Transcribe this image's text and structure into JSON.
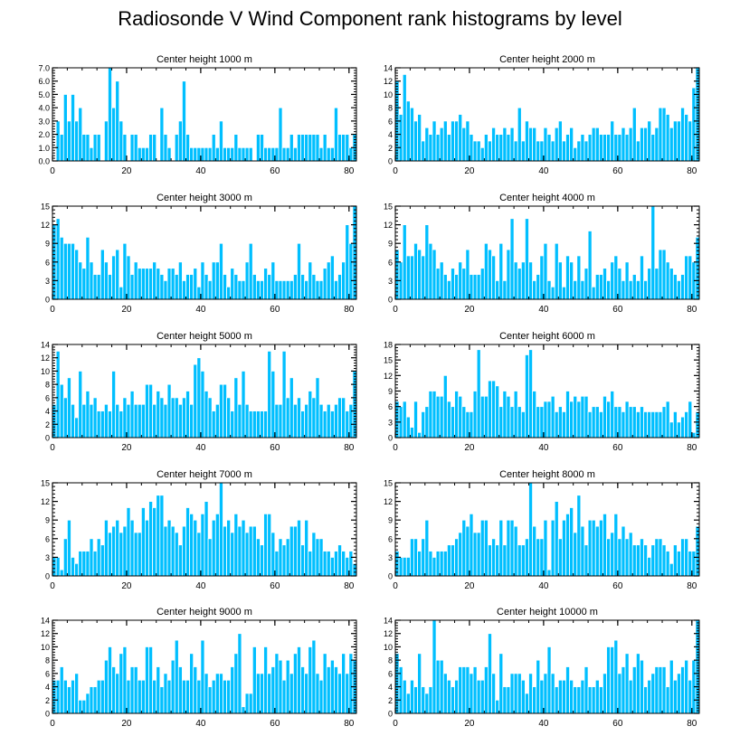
{
  "title": "Radiosonde V Wind Component rank histograms by level",
  "colors": {
    "bar": "#00BFFF",
    "bar_edge": "#ffffff",
    "axis": "#000000"
  },
  "chart_data": [
    {
      "type": "bar",
      "title": "Center height 1000 m",
      "xlim": [
        0,
        82
      ],
      "ylim": [
        0,
        7
      ],
      "xticks": [
        0,
        20,
        40,
        60,
        80
      ],
      "yticks": [
        "0.0",
        "1.0",
        "2.0",
        "3.0",
        "4.0",
        "5.0",
        "6.0",
        "7.0"
      ],
      "values": [
        0,
        3,
        2,
        5,
        3,
        5,
        3,
        4,
        2,
        2,
        1,
        2,
        2,
        0,
        3,
        7,
        4,
        6,
        3,
        2,
        0,
        2,
        2,
        1,
        1,
        1,
        2,
        2,
        0,
        4,
        2,
        1,
        0,
        2,
        3,
        6,
        2,
        1,
        1,
        1,
        1,
        1,
        1,
        2,
        1,
        3,
        1,
        1,
        1,
        2,
        1,
        1,
        1,
        1,
        0,
        2,
        2,
        1,
        1,
        1,
        1,
        4,
        1,
        1,
        2,
        1,
        2,
        2,
        2,
        2,
        2,
        2,
        1,
        2,
        1,
        1,
        4,
        2,
        2,
        2,
        1,
        2
      ]
    },
    {
      "type": "bar",
      "title": "Center height 2000 m",
      "xlim": [
        0,
        82
      ],
      "ylim": [
        0,
        14
      ],
      "xticks": [
        0,
        20,
        40,
        60,
        80
      ],
      "yticks": [
        "0",
        "2",
        "4",
        "6",
        "8",
        "10",
        "12",
        "14"
      ],
      "values": [
        12,
        7,
        13,
        9,
        8,
        6,
        7,
        3,
        5,
        4,
        6,
        4,
        5,
        6,
        4,
        6,
        6,
        7,
        5,
        6,
        4,
        3,
        3,
        2,
        4,
        3,
        5,
        4,
        4,
        5,
        4,
        5,
        3,
        8,
        3,
        6,
        5,
        5,
        3,
        3,
        5,
        4,
        3,
        5,
        6,
        3,
        4,
        5,
        2,
        3,
        4,
        3,
        4,
        5,
        5,
        4,
        4,
        4,
        6,
        4,
        4,
        5,
        4,
        5,
        8,
        3,
        5,
        5,
        6,
        4,
        5,
        8,
        8,
        7,
        5,
        6,
        6,
        8,
        7,
        6,
        11,
        14
      ]
    },
    {
      "type": "bar",
      "title": "Center height 3000 m",
      "xlim": [
        0,
        82
      ],
      "ylim": [
        0,
        15
      ],
      "xticks": [
        0,
        20,
        40,
        60,
        80
      ],
      "yticks": [
        "0",
        "3",
        "6",
        "9",
        "12",
        "15"
      ],
      "values": [
        12,
        13,
        10,
        9,
        9,
        9,
        8,
        6,
        5,
        10,
        6,
        4,
        4,
        8,
        6,
        4,
        7,
        8,
        2,
        9,
        7,
        4,
        6,
        5,
        5,
        5,
        5,
        6,
        5,
        4,
        3,
        5,
        5,
        4,
        6,
        3,
        4,
        4,
        5,
        2,
        6,
        4,
        3,
        6,
        6,
        9,
        4,
        2,
        5,
        4,
        3,
        3,
        6,
        9,
        4,
        3,
        3,
        5,
        4,
        6,
        3,
        3,
        3,
        3,
        3,
        4,
        9,
        4,
        3,
        6,
        4,
        3,
        3,
        5,
        6,
        7,
        3,
        4,
        6,
        12,
        9,
        15
      ]
    },
    {
      "type": "bar",
      "title": "Center height 4000 m",
      "xlim": [
        0,
        82
      ],
      "ylim": [
        0,
        15
      ],
      "xticks": [
        0,
        20,
        40,
        60,
        80
      ],
      "yticks": [
        "0",
        "3",
        "6",
        "9",
        "12",
        "15"
      ],
      "values": [
        8,
        6,
        12,
        7,
        7,
        9,
        8,
        7,
        12,
        9,
        8,
        5,
        6,
        4,
        3,
        5,
        4,
        6,
        5,
        8,
        4,
        4,
        4,
        5,
        9,
        8,
        7,
        3,
        9,
        3,
        8,
        13,
        6,
        5,
        6,
        13,
        6,
        3,
        4,
        7,
        9,
        3,
        2,
        9,
        6,
        2,
        7,
        6,
        3,
        7,
        3,
        5,
        11,
        2,
        4,
        4,
        5,
        3,
        6,
        7,
        5,
        3,
        6,
        3,
        4,
        3,
        7,
        3,
        5,
        15,
        5,
        8,
        8,
        6,
        5,
        4,
        3,
        4,
        7,
        7,
        6,
        10
      ]
    },
    {
      "type": "bar",
      "title": "Center height 5000 m",
      "xlim": [
        0,
        82
      ],
      "ylim": [
        0,
        14
      ],
      "xticks": [
        0,
        20,
        40,
        60,
        80
      ],
      "yticks": [
        "0",
        "2",
        "4",
        "6",
        "8",
        "10",
        "12",
        "14"
      ],
      "values": [
        5,
        13,
        8,
        6,
        9,
        5,
        3,
        10,
        5,
        7,
        5,
        6,
        4,
        4,
        5,
        4,
        10,
        5,
        4,
        6,
        5,
        7,
        5,
        5,
        5,
        8,
        8,
        5,
        7,
        6,
        5,
        8,
        6,
        6,
        5,
        6,
        7,
        5,
        11,
        12,
        10,
        7,
        6,
        4,
        5,
        8,
        8,
        6,
        4,
        9,
        5,
        10,
        5,
        4,
        4,
        4,
        4,
        4,
        13,
        10,
        5,
        5,
        13,
        6,
        9,
        5,
        6,
        4,
        5,
        7,
        6,
        9,
        5,
        4,
        5,
        4,
        5,
        6,
        6,
        4,
        5,
        10
      ]
    },
    {
      "type": "bar",
      "title": "Center height 6000 m",
      "xlim": [
        0,
        82
      ],
      "ylim": [
        0,
        18
      ],
      "xticks": [
        0,
        20,
        40,
        60,
        80
      ],
      "yticks": [
        "0",
        "3",
        "6",
        "9",
        "12",
        "15",
        "18"
      ],
      "values": [
        7,
        6,
        7,
        4,
        2,
        7,
        1,
        5,
        6,
        9,
        9,
        8,
        8,
        12,
        7,
        6,
        9,
        8,
        6,
        5,
        5,
        9,
        17,
        8,
        8,
        11,
        11,
        10,
        6,
        9,
        8,
        6,
        9,
        6,
        5,
        16,
        17,
        9,
        6,
        6,
        7,
        7,
        8,
        5,
        6,
        5,
        9,
        7,
        8,
        7,
        8,
        8,
        5,
        6,
        6,
        5,
        8,
        7,
        9,
        6,
        6,
        5,
        7,
        6,
        6,
        5,
        6,
        5,
        5,
        5,
        5,
        5,
        6,
        7,
        3,
        5,
        3,
        4,
        5,
        7,
        1,
        5
      ]
    },
    {
      "type": "bar",
      "title": "Center height 7000 m",
      "xlim": [
        0,
        82
      ],
      "ylim": [
        0,
        15
      ],
      "xticks": [
        0,
        20,
        40,
        60,
        80
      ],
      "yticks": [
        "0",
        "3",
        "6",
        "9",
        "12",
        "15"
      ],
      "values": [
        3,
        3,
        1,
        6,
        9,
        3,
        2,
        4,
        4,
        4,
        6,
        4,
        6,
        5,
        9,
        7,
        8,
        9,
        7,
        8,
        11,
        9,
        7,
        7,
        11,
        9,
        12,
        11,
        13,
        13,
        8,
        9,
        8,
        7,
        5,
        8,
        11,
        10,
        9,
        7,
        10,
        12,
        6,
        9,
        10,
        15,
        8,
        9,
        7,
        10,
        8,
        9,
        7,
        8,
        8,
        6,
        5,
        10,
        10,
        7,
        4,
        6,
        5,
        6,
        8,
        8,
        9,
        5,
        9,
        4,
        7,
        6,
        6,
        4,
        4,
        3,
        4,
        5,
        4,
        3,
        4,
        2
      ]
    },
    {
      "type": "bar",
      "title": "Center height 8000 m",
      "xlim": [
        0,
        82
      ],
      "ylim": [
        0,
        15
      ],
      "xticks": [
        0,
        20,
        40,
        60,
        80
      ],
      "yticks": [
        "0",
        "3",
        "6",
        "9",
        "12",
        "15"
      ],
      "values": [
        4,
        3,
        3,
        3,
        6,
        6,
        4,
        6,
        9,
        4,
        3,
        4,
        4,
        4,
        5,
        5,
        6,
        7,
        9,
        8,
        10,
        7,
        7,
        9,
        9,
        5,
        6,
        5,
        9,
        5,
        9,
        9,
        8,
        5,
        5,
        6,
        15,
        8,
        6,
        6,
        9,
        1,
        9,
        12,
        6,
        9,
        10,
        11,
        7,
        13,
        8,
        5,
        9,
        9,
        8,
        9,
        10,
        6,
        7,
        10,
        6,
        8,
        6,
        7,
        5,
        5,
        6,
        5,
        3,
        5,
        6,
        6,
        5,
        4,
        2,
        5,
        4,
        6,
        6,
        4,
        4,
        8
      ]
    },
    {
      "type": "bar",
      "title": "Center height 9000 m",
      "xlim": [
        0,
        82
      ],
      "ylim": [
        0,
        14
      ],
      "xticks": [
        0,
        20,
        40,
        60,
        80
      ],
      "yticks": [
        "0",
        "2",
        "4",
        "6",
        "8",
        "10",
        "12",
        "14"
      ],
      "values": [
        5,
        5,
        7,
        5,
        4,
        5,
        6,
        2,
        2,
        3,
        4,
        4,
        5,
        5,
        8,
        10,
        7,
        6,
        9,
        10,
        5,
        7,
        7,
        5,
        5,
        10,
        10,
        5,
        7,
        4,
        6,
        5,
        8,
        11,
        7,
        5,
        5,
        9,
        7,
        5,
        11,
        6,
        4,
        5,
        6,
        6,
        5,
        5,
        7,
        9,
        12,
        1,
        3,
        3,
        10,
        6,
        6,
        10,
        6,
        7,
        9,
        8,
        5,
        8,
        6,
        9,
        10,
        7,
        6,
        10,
        11,
        6,
        5,
        9,
        7,
        8,
        7,
        6,
        9,
        6,
        9,
        8
      ]
    },
    {
      "type": "bar",
      "title": "Center height 10000 m",
      "xlim": [
        0,
        82
      ],
      "ylim": [
        0,
        14
      ],
      "xticks": [
        0,
        20,
        40,
        60,
        80
      ],
      "yticks": [
        "0",
        "2",
        "4",
        "6",
        "8",
        "10",
        "12",
        "14"
      ],
      "values": [
        9,
        7,
        5,
        3,
        5,
        4,
        9,
        4,
        3,
        4,
        14,
        8,
        8,
        6,
        5,
        4,
        5,
        7,
        7,
        7,
        6,
        7,
        5,
        5,
        7,
        12,
        6,
        2,
        9,
        4,
        4,
        6,
        6,
        6,
        5,
        3,
        6,
        4,
        8,
        5,
        6,
        10,
        6,
        4,
        5,
        5,
        7,
        5,
        4,
        4,
        5,
        7,
        4,
        4,
        5,
        4,
        6,
        10,
        10,
        11,
        6,
        7,
        9,
        5,
        7,
        9,
        8,
        4,
        5,
        6,
        7,
        7,
        7,
        4,
        8,
        5,
        6,
        7,
        8,
        5,
        8,
        14
      ]
    }
  ]
}
